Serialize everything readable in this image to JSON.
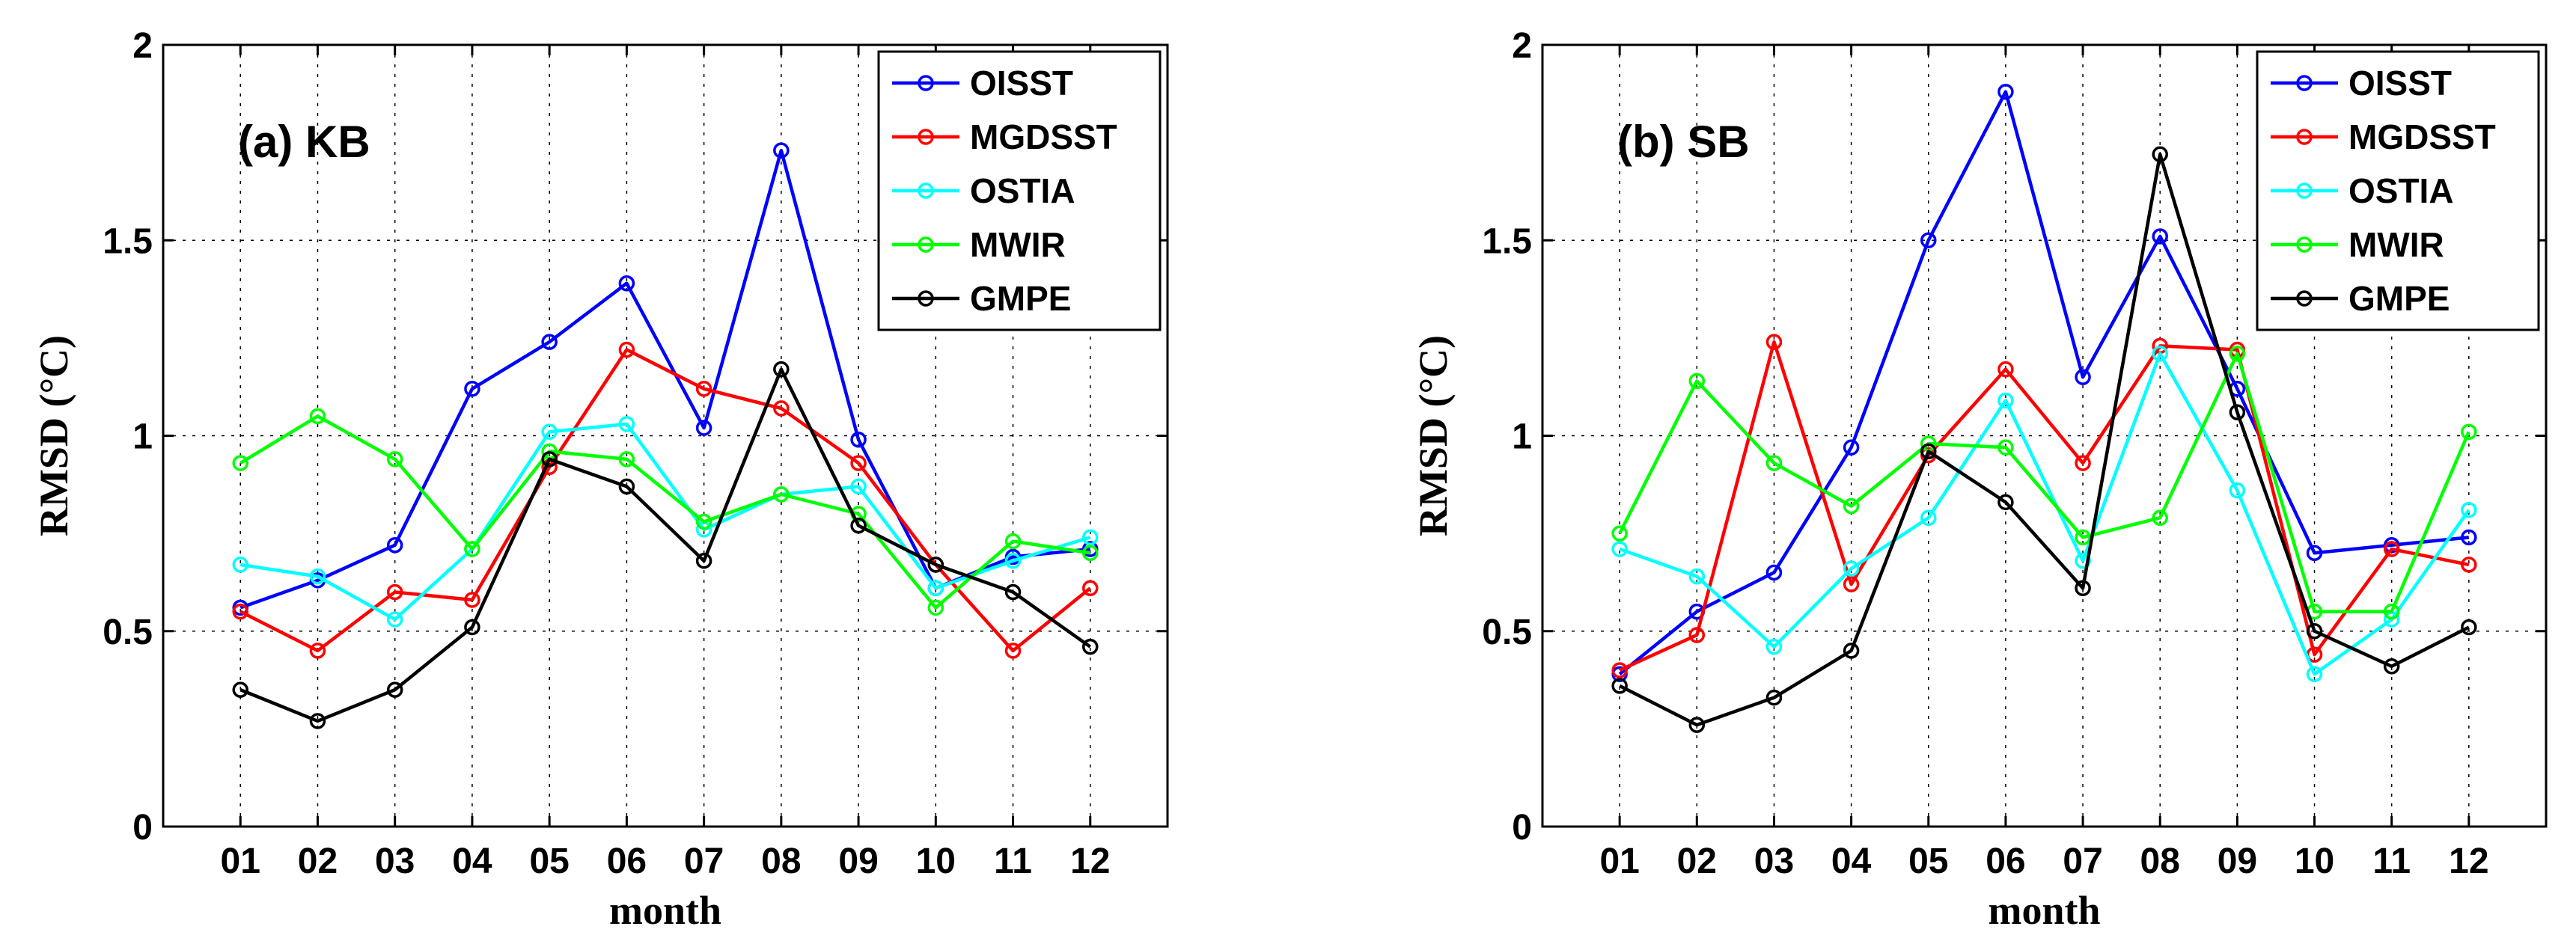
{
  "chart_data": [
    {
      "type": "line",
      "title": "(a) KB",
      "xlabel": "month",
      "ylabel": "RMSD (°C)",
      "categories": [
        "01",
        "02",
        "03",
        "04",
        "05",
        "06",
        "07",
        "08",
        "09",
        "10",
        "11",
        "12"
      ],
      "ylim": [
        0,
        2
      ],
      "yticks": [
        "0",
        "0.5",
        "1",
        "1.5",
        "2"
      ],
      "grid": true,
      "legend_position": "top-right",
      "series": [
        {
          "name": "OISST",
          "color": "#0000ff",
          "values": [
            0.56,
            0.63,
            0.72,
            1.12,
            1.24,
            1.39,
            1.02,
            1.73,
            0.99,
            0.61,
            0.69,
            0.71
          ]
        },
        {
          "name": "MGDSST",
          "color": "#ff0000",
          "values": [
            0.55,
            0.45,
            0.6,
            0.58,
            0.92,
            1.22,
            1.12,
            1.07,
            0.93,
            0.67,
            0.45,
            0.61
          ]
        },
        {
          "name": "OSTIA",
          "color": "#00ffff",
          "values": [
            0.67,
            0.64,
            0.53,
            0.71,
            1.01,
            1.03,
            0.76,
            0.85,
            0.87,
            0.61,
            0.68,
            0.74
          ]
        },
        {
          "name": "MWIR",
          "color": "#00ff00",
          "values": [
            0.93,
            1.05,
            0.94,
            0.71,
            0.96,
            0.94,
            0.78,
            0.85,
            0.8,
            0.56,
            0.73,
            0.7
          ]
        },
        {
          "name": "GMPE",
          "color": "#000000",
          "values": [
            0.35,
            0.27,
            0.35,
            0.51,
            0.94,
            0.87,
            0.68,
            1.17,
            0.77,
            0.67,
            0.6,
            0.46
          ]
        }
      ]
    },
    {
      "type": "line",
      "title": "(b) SB",
      "xlabel": "month",
      "ylabel": "RMSD (°C)",
      "categories": [
        "01",
        "02",
        "03",
        "04",
        "05",
        "06",
        "07",
        "08",
        "09",
        "10",
        "11",
        "12"
      ],
      "ylim": [
        0,
        2
      ],
      "yticks": [
        "0",
        "0.5",
        "1",
        "1.5",
        "2"
      ],
      "grid": true,
      "legend_position": "top-right",
      "series": [
        {
          "name": "OISST",
          "color": "#0000ff",
          "values": [
            0.39,
            0.55,
            0.65,
            0.97,
            1.5,
            1.88,
            1.15,
            1.51,
            1.12,
            0.7,
            0.72,
            0.74
          ]
        },
        {
          "name": "MGDSST",
          "color": "#ff0000",
          "values": [
            0.4,
            0.49,
            1.24,
            0.62,
            0.95,
            1.17,
            0.93,
            1.23,
            1.22,
            0.44,
            0.71,
            0.67
          ]
        },
        {
          "name": "OSTIA",
          "color": "#00ffff",
          "values": [
            0.71,
            0.64,
            0.46,
            0.66,
            0.79,
            1.09,
            0.68,
            1.21,
            0.86,
            0.39,
            0.53,
            0.81
          ]
        },
        {
          "name": "MWIR",
          "color": "#00ff00",
          "values": [
            0.75,
            1.14,
            0.93,
            0.82,
            0.98,
            0.97,
            0.74,
            0.79,
            1.21,
            0.55,
            0.55,
            1.01
          ]
        },
        {
          "name": "GMPE",
          "color": "#000000",
          "values": [
            0.36,
            0.26,
            0.33,
            0.45,
            0.96,
            0.83,
            0.61,
            1.72,
            1.06,
            0.5,
            0.41,
            0.51
          ]
        }
      ]
    }
  ]
}
